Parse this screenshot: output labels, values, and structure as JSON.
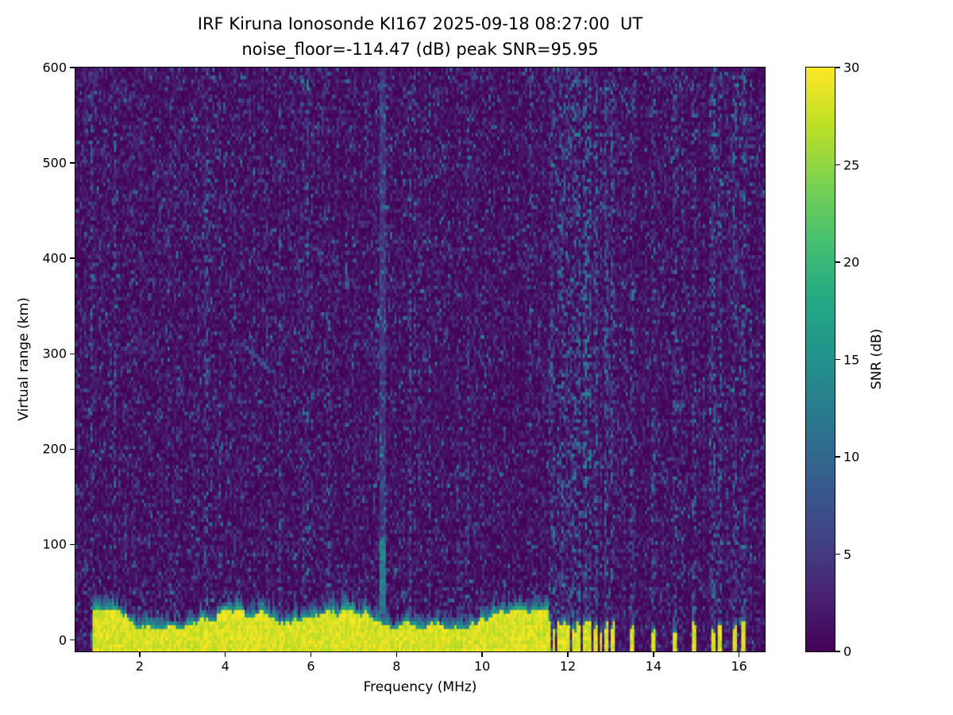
{
  "figure": {
    "background_color": "#ffffff",
    "axes_frame_color": "#000000"
  },
  "chart_data": {
    "type": "heatmap",
    "title": "IRF Kiruna Ionosonde KI167 2025-09-18 08:27:00  UT",
    "subtitle": "noise_floor=-114.47 (dB) peak SNR=95.95",
    "xlabel": "Frequency (MHz)",
    "ylabel": "Virtual range (km)",
    "colorbar_label": "SNR (dB)",
    "station": "IRF Kiruna Ionosonde KI167",
    "timestamp_ut": "2025-09-18 08:27:00",
    "noise_floor_db": -114.47,
    "peak_snr_db": 95.95,
    "x_range": [
      0.5,
      16.6
    ],
    "y_range": [
      -12,
      600
    ],
    "x_ticks": [
      2,
      4,
      6,
      8,
      10,
      12,
      14,
      16
    ],
    "y_ticks": [
      0,
      100,
      200,
      300,
      400,
      500,
      600
    ],
    "colorbar_ticks": [
      0,
      5,
      10,
      15,
      20,
      25,
      30
    ],
    "clim": [
      0,
      30
    ],
    "grid": false,
    "legend": "colorbar-right",
    "colormap": "viridis",
    "colormap_stops": [
      {
        "t": 0.0,
        "c": "#440154"
      },
      {
        "t": 0.1,
        "c": "#482475"
      },
      {
        "t": 0.2,
        "c": "#414487"
      },
      {
        "t": 0.3,
        "c": "#355f8d"
      },
      {
        "t": 0.4,
        "c": "#2a788e"
      },
      {
        "t": 0.5,
        "c": "#21918c"
      },
      {
        "t": 0.6,
        "c": "#22a884"
      },
      {
        "t": 0.7,
        "c": "#44bf70"
      },
      {
        "t": 0.8,
        "c": "#7ad151"
      },
      {
        "t": 0.9,
        "c": "#bddf26"
      },
      {
        "t": 1.0,
        "c": "#fde725"
      }
    ],
    "features": {
      "ground_return": {
        "freq_start_mhz": 0.88,
        "freq_end_mhz": 11.55,
        "yellow_top_km_range": [
          12,
          34
        ],
        "fringe_km_range": [
          5,
          20
        ],
        "saturated_snr_db": 30
      },
      "intermittent_ground_stripes_mhz": [
        11.58,
        11.68,
        11.8,
        11.9,
        12.02,
        12.14,
        12.26,
        12.38,
        12.5,
        12.64,
        12.78,
        12.92,
        13.05,
        13.5,
        13.98,
        14.5,
        14.95,
        15.38,
        15.55,
        15.9,
        16.12
      ],
      "interference_lines_mhz": [
        7.62,
        7.7
      ],
      "interference_bright_segment_km": [
        0,
        110
      ],
      "faint_diagonal_streak": {
        "from_mhz_km": [
          4.35,
          312
        ],
        "to_mhz_km": [
          5.05,
          282
        ]
      },
      "background_noise_snr_db": [
        0,
        6
      ],
      "noise_speckle_max_db": 13
    }
  }
}
